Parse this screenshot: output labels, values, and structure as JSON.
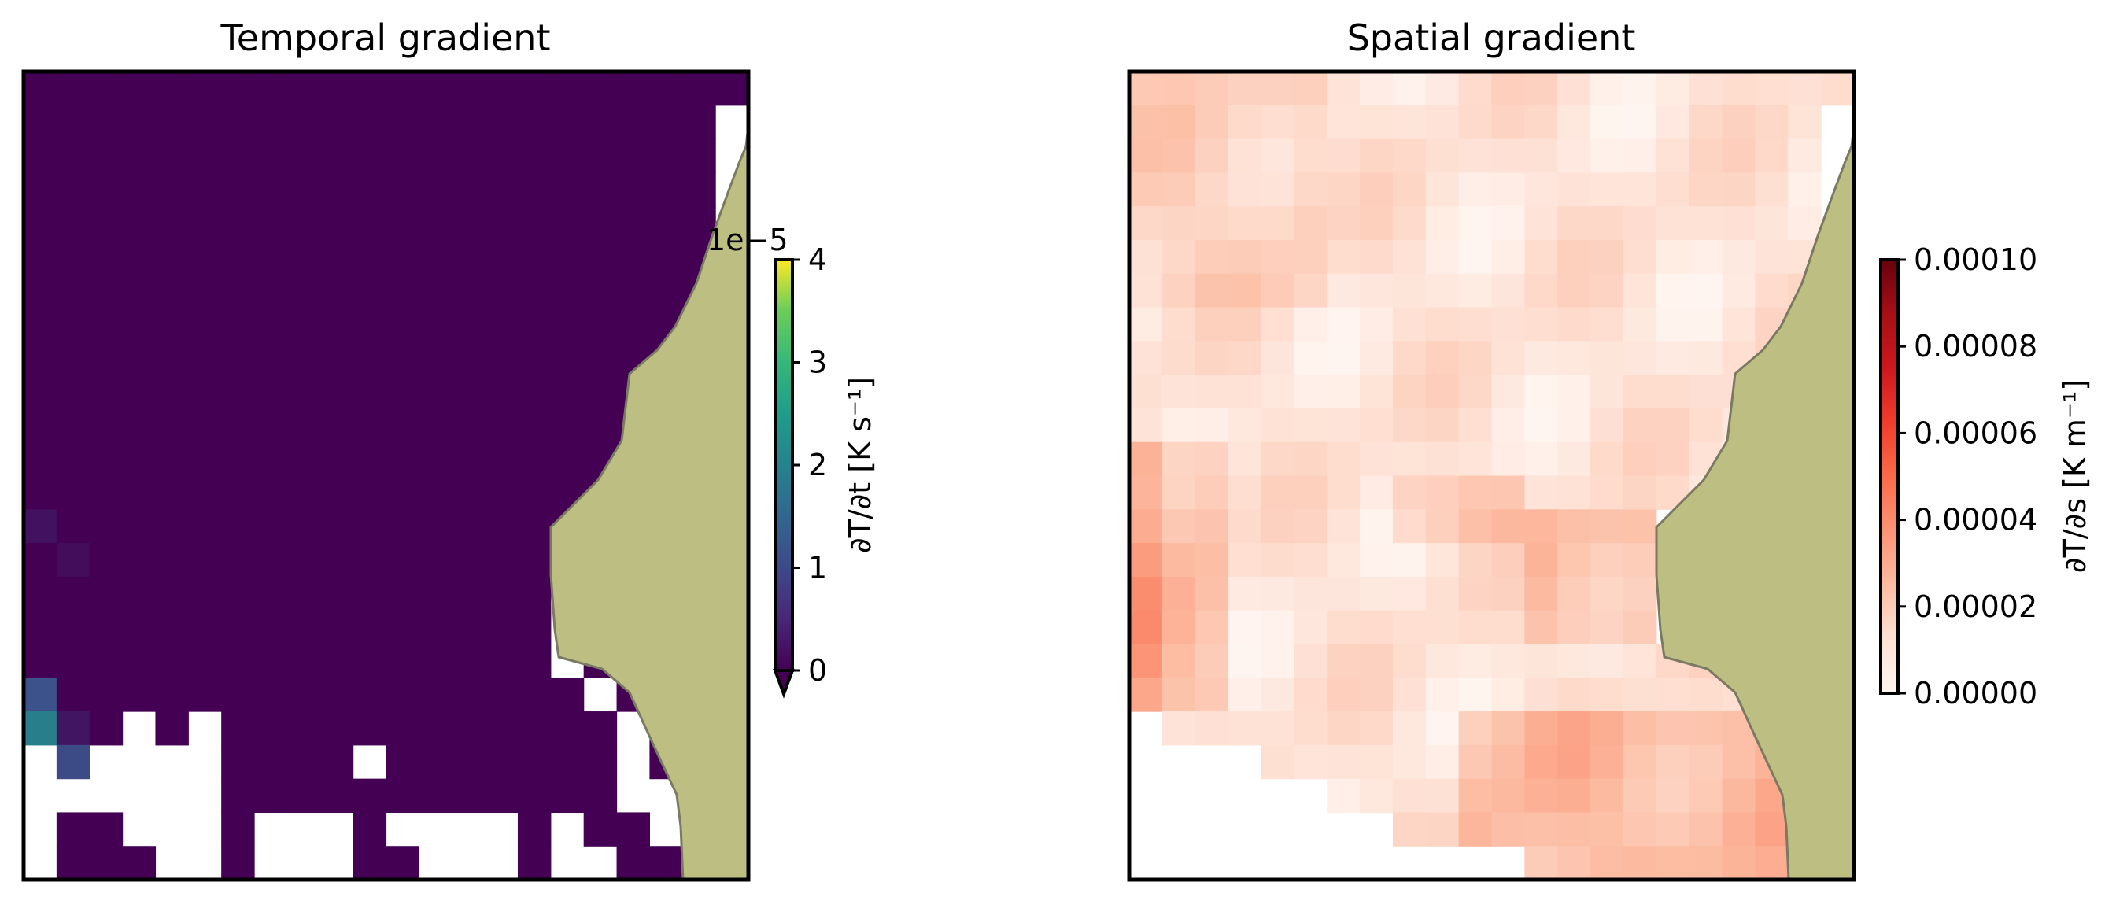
{
  "chart_data": [
    {
      "type": "heatmap",
      "title": "Temporal gradient",
      "colormap": "viridis",
      "colorbar": {
        "label": "∂T/∂t [K s⁻¹]",
        "offset_text": "1e−5",
        "ticks": [
          "0",
          "1",
          "2",
          "3",
          "4"
        ],
        "vmin": 0,
        "vmax": 4,
        "extend": "min"
      },
      "land_color": "#bdbf82",
      "grid_size": [
        22,
        24
      ],
      "special_cells": [
        {
          "row": 13,
          "col": 0,
          "value": 0.2
        },
        {
          "row": 14,
          "col": 1,
          "value": 0.15
        },
        {
          "row": 18,
          "col": 0,
          "value": 1.0
        },
        {
          "row": 19,
          "col": 0,
          "value": 1.7
        },
        {
          "row": 19,
          "col": 1,
          "value": 0.25
        },
        {
          "row": 20,
          "col": 1,
          "value": 0.9
        }
      ],
      "background_value": 0
    },
    {
      "type": "heatmap",
      "title": "Spatial gradient",
      "colormap": "Reds",
      "colorbar": {
        "label": "∂T/∂s [K m⁻¹]",
        "ticks": [
          "0.00000",
          "0.00002",
          "0.00004",
          "0.00006",
          "0.00008",
          "0.00010"
        ],
        "vmin": 0,
        "vmax": 0.0001
      },
      "land_color": "#bdbf82",
      "grid_size": [
        22,
        24
      ],
      "value_range_observed": [
        0.0,
        5e-05
      ]
    }
  ]
}
